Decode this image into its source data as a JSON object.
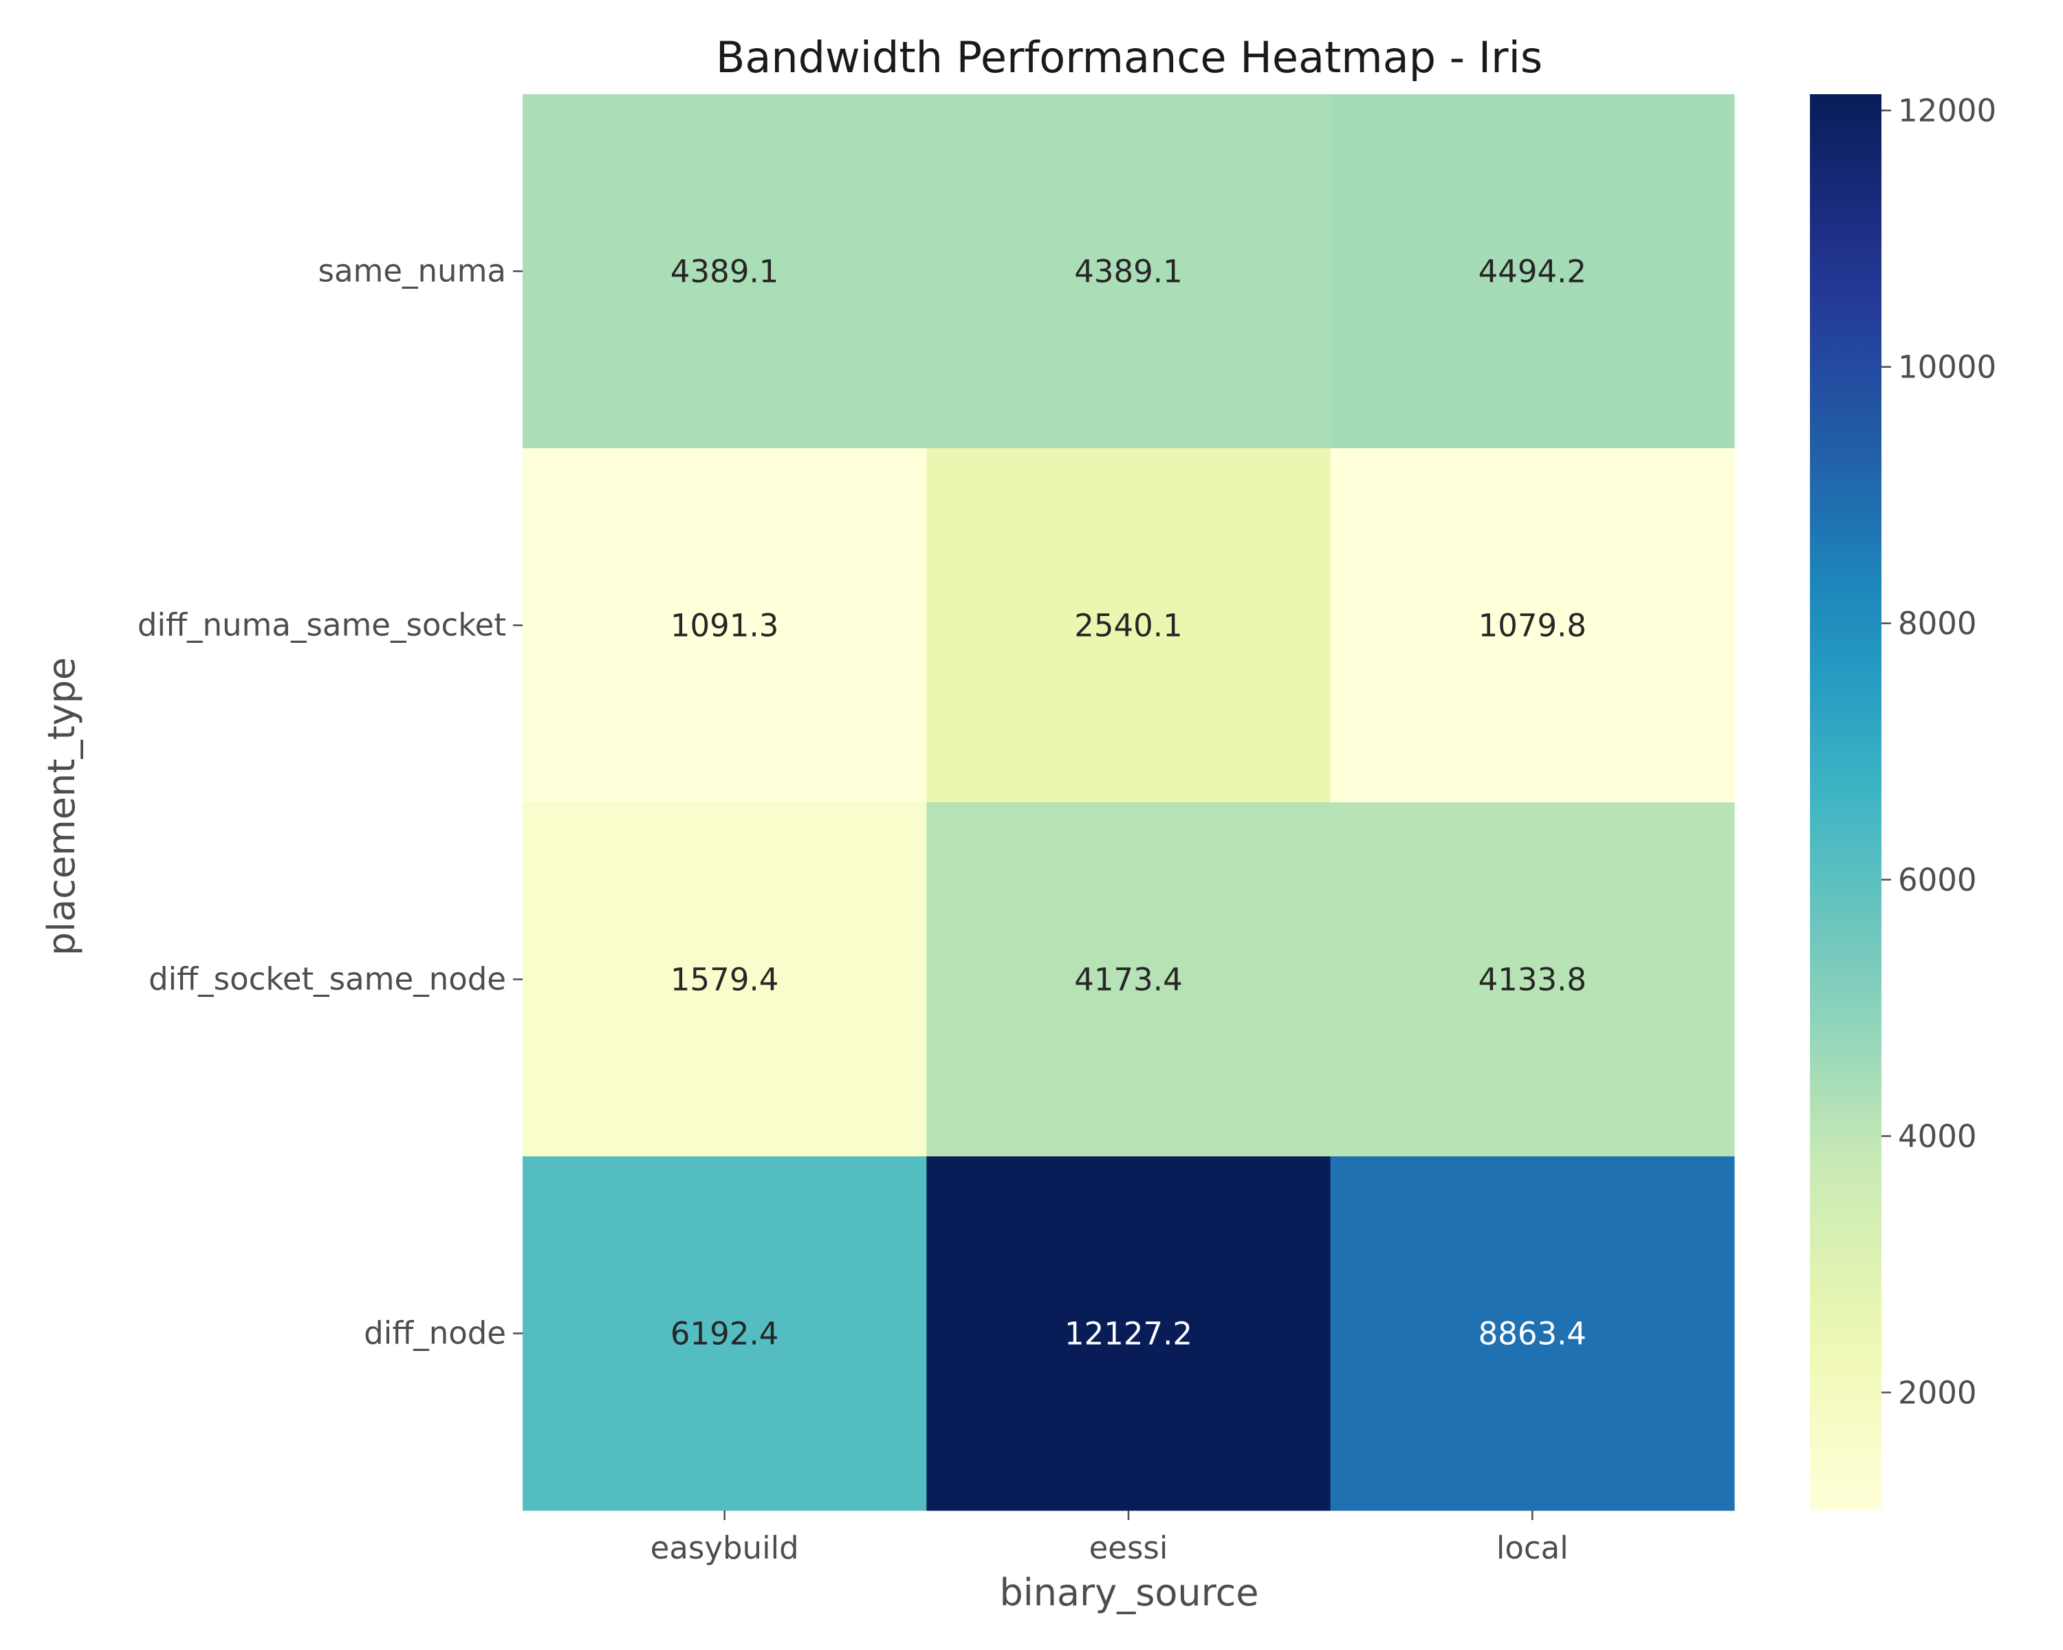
{
  "chart_data": {
    "type": "heatmap",
    "title": "Bandwidth Performance Heatmap - Iris",
    "xlabel": "binary_source",
    "ylabel": "placement_type",
    "x_categories": [
      "easybuild",
      "eessi",
      "local"
    ],
    "y_categories": [
      "same_numa",
      "diff_numa_same_socket",
      "diff_socket_same_node",
      "diff_node"
    ],
    "values": [
      [
        4389.1,
        4389.1,
        4494.2
      ],
      [
        1091.3,
        2540.1,
        1079.8
      ],
      [
        1579.4,
        4173.4,
        4133.8
      ],
      [
        6192.4,
        12127.2,
        8863.4
      ]
    ],
    "value_labels": [
      [
        "4389.1",
        "4389.1",
        "4494.2"
      ],
      [
        "1091.3",
        "2540.1",
        "1079.8"
      ],
      [
        "1579.4",
        "4173.4",
        "4133.8"
      ],
      [
        "6192.4",
        "12127.2",
        "8863.4"
      ]
    ],
    "colormap": "YlGnBu",
    "colorbar": {
      "vmin": 1079.8,
      "vmax": 12127.2,
      "ticks": [
        2000,
        4000,
        6000,
        8000,
        10000,
        12000
      ],
      "tick_labels": [
        "2000",
        "4000",
        "6000",
        "8000",
        "10000",
        "12000"
      ]
    },
    "grid": false,
    "colorbar_placement": "right"
  }
}
